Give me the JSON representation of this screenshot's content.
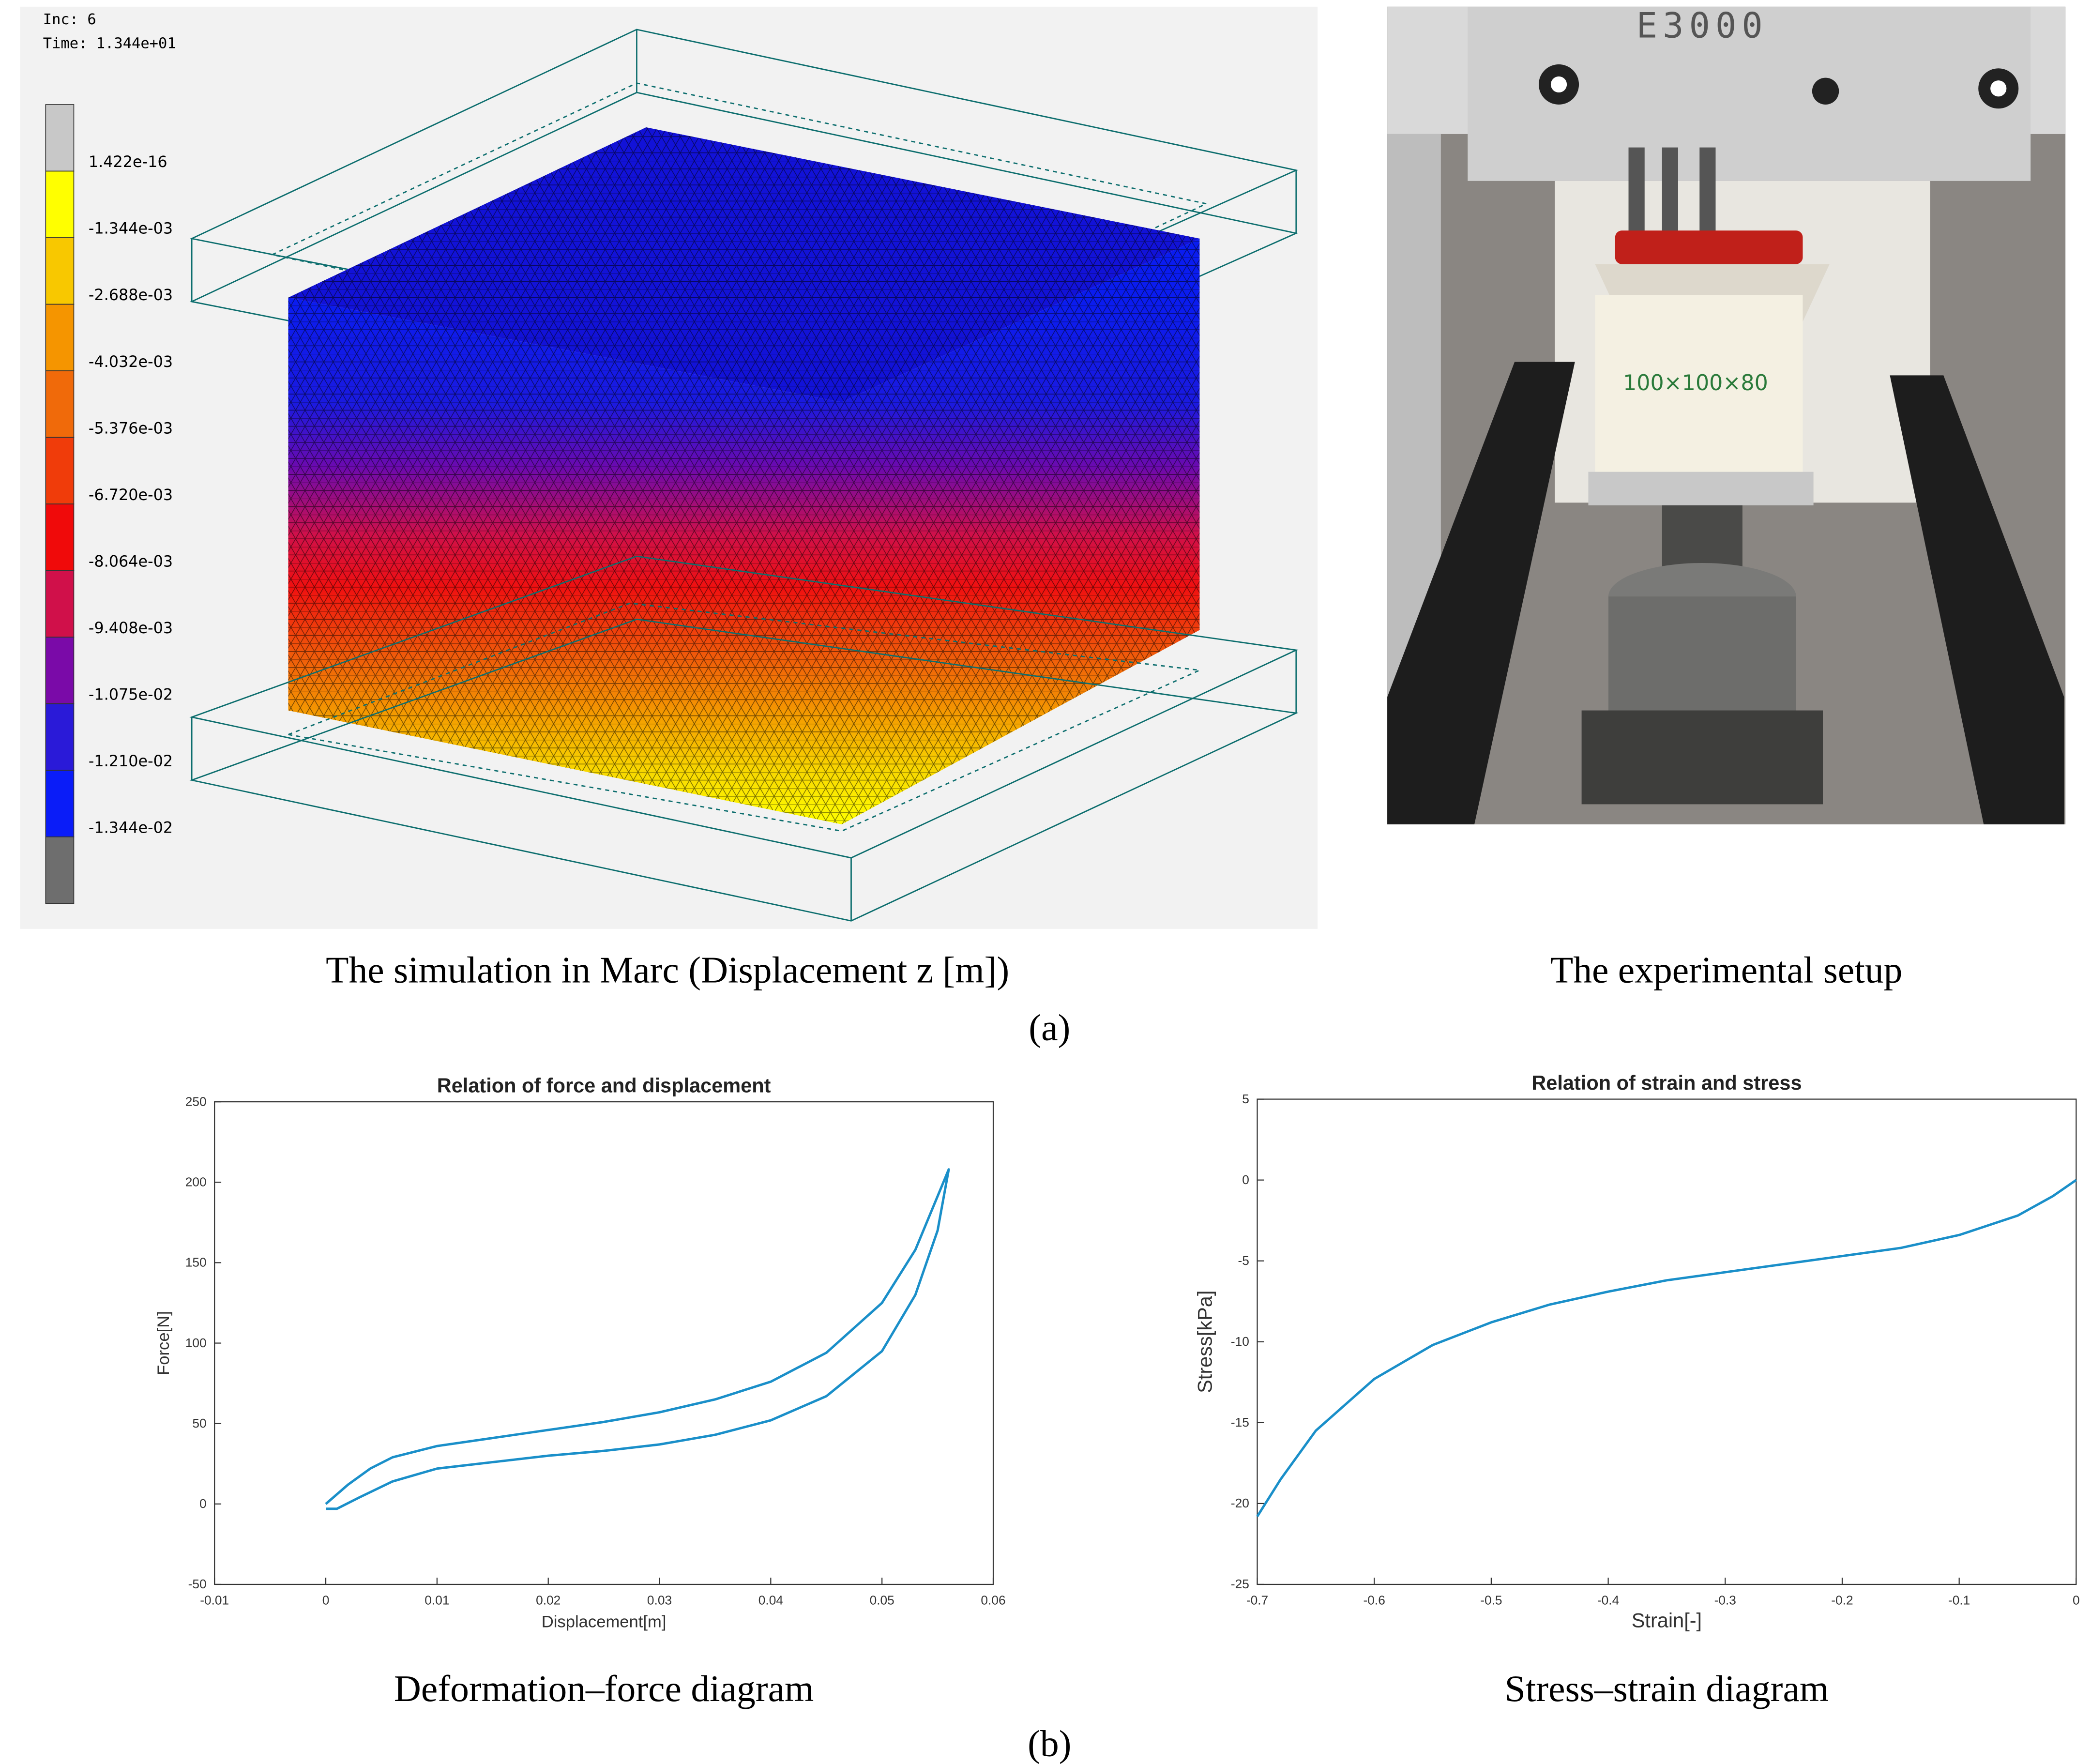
{
  "simulation": {
    "inc": "Inc:  6",
    "time": "Time:  1.344e+01",
    "colorbar_labels": [
      "1.422e-16",
      "-1.344e-03",
      "-2.688e-03",
      "-4.032e-03",
      "-5.376e-03",
      "-6.720e-03",
      "-8.064e-03",
      "-9.408e-03",
      "-1.075e-02",
      "-1.210e-02",
      "-1.344e-02"
    ],
    "caption": "The simulation in Marc (Displacement z [m])"
  },
  "photo": {
    "machine_label": "E3000",
    "specimen_label": "100×100×80",
    "caption": "The experimental setup"
  },
  "panel_a": "(a)",
  "panel_b": "(b)",
  "chart_data": [
    {
      "type": "line",
      "title": "Relation of force and displacement",
      "x_label": "Displacement[m]",
      "y_label": "Force[N]",
      "caption": "Deformation–force diagram",
      "x": [
        0,
        0.002,
        0.004,
        0.006,
        0.01,
        0.015,
        0.02,
        0.025,
        0.03,
        0.035,
        0.04,
        0.045,
        0.05,
        0.053,
        0.056,
        0.055,
        0.053,
        0.05,
        0.045,
        0.04,
        0.035,
        0.03,
        0.025,
        0.02,
        0.015,
        0.01,
        0.006,
        0.003,
        0.001,
        0
      ],
      "series": [
        {
          "name": "Force",
          "color": "#1a8fc9",
          "values": [
            0,
            12,
            22,
            29,
            36,
            41,
            46,
            51,
            57,
            65,
            76,
            94,
            125,
            158,
            208,
            170,
            130,
            95,
            67,
            52,
            43,
            37,
            33,
            30,
            26,
            22,
            14,
            4,
            -3,
            -3
          ]
        }
      ],
      "xlim": [
        -0.01,
        0.06
      ],
      "xticks": [
        -0.01,
        0,
        0.01,
        0.02,
        0.03,
        0.04,
        0.05,
        0.06
      ],
      "ylim": [
        -50,
        250
      ],
      "yticks": [
        -50,
        0,
        50,
        100,
        150,
        200,
        250
      ],
      "grid": false
    },
    {
      "type": "line",
      "title": "Relation of strain and stress",
      "x_label": "Strain[-]",
      "y_label": "Stress[kPa]",
      "caption": "Stress–strain diagram",
      "x": [
        -0.7,
        -0.68,
        -0.65,
        -0.6,
        -0.55,
        -0.5,
        -0.45,
        -0.4,
        -0.35,
        -0.3,
        -0.25,
        -0.2,
        -0.15,
        -0.1,
        -0.05,
        -0.02,
        0
      ],
      "series": [
        {
          "name": "Stress",
          "color": "#1a8fc9",
          "values": [
            -20.8,
            -18.5,
            -15.5,
            -12.3,
            -10.2,
            -8.8,
            -7.7,
            -6.9,
            -6.2,
            -5.7,
            -5.2,
            -4.7,
            -4.2,
            -3.4,
            -2.2,
            -1.0,
            0
          ]
        }
      ],
      "xlim": [
        -0.7,
        0
      ],
      "xticks": [
        -0.7,
        -0.6,
        -0.5,
        -0.4,
        -0.3,
        -0.2,
        -0.1,
        0
      ],
      "ylim": [
        -25,
        5
      ],
      "yticks": [
        -25,
        -20,
        -15,
        -10,
        -5,
        0,
        5
      ],
      "grid": false
    }
  ]
}
